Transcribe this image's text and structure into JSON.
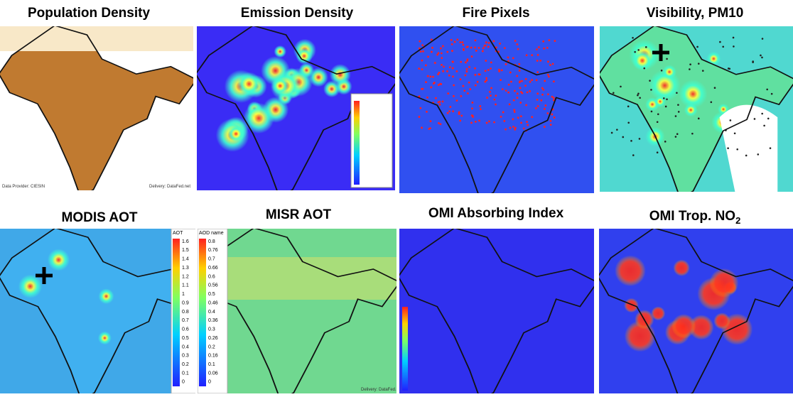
{
  "panels": [
    {
      "title": "Population Density",
      "credits": [
        "Data Provider: CIESIN",
        "Delivery: DataFed.net"
      ]
    },
    {
      "title": "Emission Density"
    },
    {
      "title": "Fire Pixels"
    },
    {
      "title": "Visibility, PM10"
    },
    {
      "title": "MODIS AOT",
      "legend_title": "AOT",
      "legend_labels": [
        "1.6",
        "1.5",
        "1.4",
        "1.3",
        "1.2",
        "1.1",
        "1",
        "0.9",
        "0.8",
        "0.7",
        "0.6",
        "0.5",
        "0.4",
        "0.3",
        "0.2",
        "0.1",
        "0"
      ]
    },
    {
      "title": "MISR AOT",
      "legend_title": "AOD name",
      "legend_labels": [
        "0.8",
        "0.76",
        "0.7",
        "0.66",
        "0.6",
        "0.56",
        "0.5",
        "0.46",
        "0.4",
        "0.36",
        "0.3",
        "0.26",
        "0.2",
        "0.16",
        "0.1",
        "0.06",
        "0"
      ],
      "credits": [
        "Delivery: DataFed.net"
      ]
    },
    {
      "title": "OMI Absorbing Index"
    },
    {
      "title": "OMI Trop. NO",
      "title_sub": "2"
    }
  ]
}
